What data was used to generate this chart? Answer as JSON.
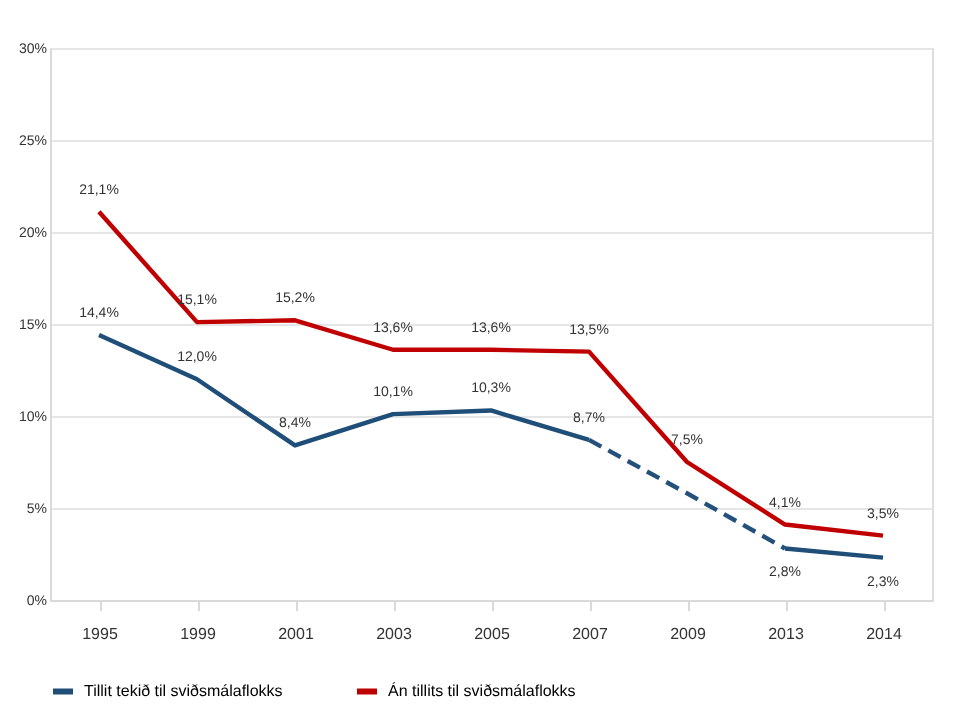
{
  "chart_data": {
    "type": "line",
    "categories": [
      "1995",
      "1999",
      "2001",
      "2003",
      "2005",
      "2007",
      "2009",
      "2013",
      "2014"
    ],
    "ylim": [
      0,
      30
    ],
    "yticks": [
      {
        "value": 0,
        "label": "0%"
      },
      {
        "value": 5,
        "label": "5%"
      },
      {
        "value": 10,
        "label": "10%"
      },
      {
        "value": 15,
        "label": "15%"
      },
      {
        "value": 20,
        "label": "20%"
      },
      {
        "value": 25,
        "label": "25%"
      },
      {
        "value": 30,
        "label": "30%"
      }
    ],
    "grid": "y",
    "legend": "bottom",
    "marker": "none",
    "line_style": "solid",
    "series": [
      {
        "name": "Tillit tekið til sviðsmálaflokks",
        "color": "#1f4e79",
        "values": [
          14.4,
          12.0,
          8.4,
          10.1,
          10.3,
          8.7,
          null,
          2.8,
          2.3
        ],
        "value_labels": [
          "14,4%",
          "12,0%",
          "8,4%",
          "10,1%",
          "10,3%",
          "8,7%",
          null,
          "2,8%",
          "2,3%"
        ]
      },
      {
        "name": "Án tillits til sviðsmálaflokks",
        "color": "#c00000",
        "values": [
          21.1,
          15.1,
          15.2,
          13.6,
          13.6,
          13.5,
          7.5,
          4.1,
          3.5
        ],
        "value_labels": [
          "21,1%",
          "15,1%",
          "15,2%",
          "13,6%",
          "13,6%",
          "13,5%",
          "7,5%",
          "4,1%",
          "3,5%"
        ]
      },
      {
        "color": "#24517c",
        "line_style": "dashed",
        "values": [
          null,
          null,
          null,
          null,
          null,
          8.7,
          5.8,
          2.8,
          null
        ]
      }
    ]
  }
}
